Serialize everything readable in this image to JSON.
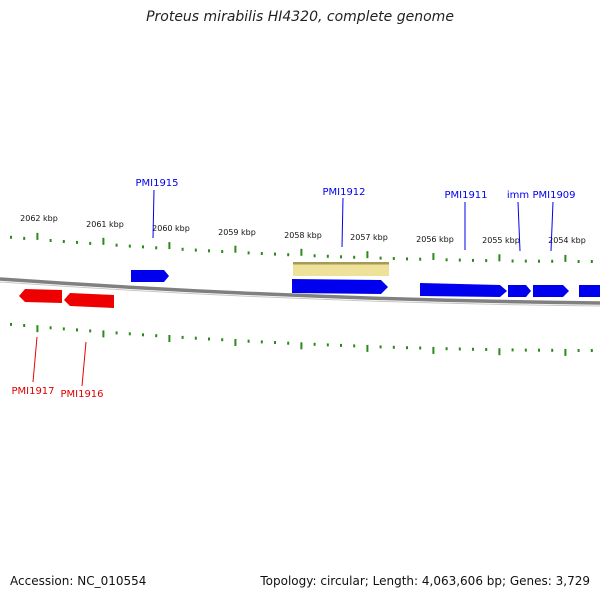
{
  "title": "Proteus mirabilis HI4320, complete genome",
  "footer": {
    "accession": "Accession: NC_010554",
    "summary": "Topology: circular; Length: 4,063,606 bp; Genes: 3,729"
  },
  "colors": {
    "forward_gene": "#0000ee",
    "reverse_gene": "#ee0000",
    "highlight": "#eee29a",
    "highlight_edge": "#a89a55",
    "tick": "#2a8a1a",
    "backbone": "#808080"
  },
  "kbp_labels": [
    "2062 kbp",
    "2061 kbp",
    "2060 kbp",
    "2059 kbp",
    "2058 kbp",
    "2057 kbp",
    "2056 kbp",
    "2055 kbp",
    "2054 kbp"
  ],
  "genes": {
    "forward": [
      {
        "label": "PMI1915"
      },
      {
        "label": "PMI1912"
      },
      {
        "label": "PMI1911"
      },
      {
        "label": "imm"
      },
      {
        "label": "PMI1909"
      }
    ],
    "reverse": [
      {
        "label": "PMI1917"
      },
      {
        "label": "PMI1916"
      }
    ]
  }
}
